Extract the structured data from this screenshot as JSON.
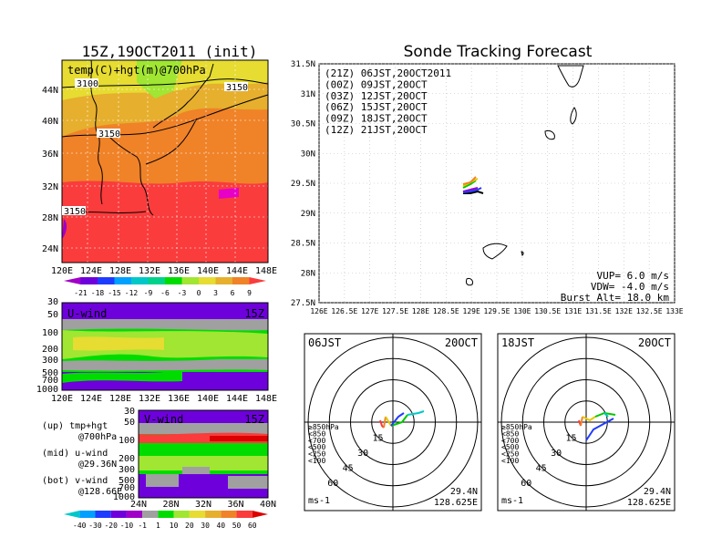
{
  "left": {
    "title": "15Z,19OCT2011 (init)",
    "map_label": "temp(C)+hgt(m)@700hPa",
    "lat_ticks": [
      "44N",
      "40N",
      "36N",
      "32N",
      "28N",
      "24N"
    ],
    "lon_ticks": [
      "120E",
      "124E",
      "128E",
      "132E",
      "136E",
      "140E",
      "144E",
      "148E"
    ],
    "contour_labels": [
      "3100",
      "3150",
      "3150",
      "3150"
    ],
    "colorbar": {
      "labels": [
        "-21",
        "-18",
        "-15",
        "-12",
        "-9",
        "-6",
        "-3",
        "0",
        "3",
        "6",
        "9"
      ],
      "colors": [
        "#a000c8",
        "#6e00dc",
        "#1e3cff",
        "#00a0ff",
        "#00c8c8",
        "#00d28c",
        "#00dc00",
        "#a0e632",
        "#e6dc32",
        "#e6af2d",
        "#f08228",
        "#fa3c3c"
      ]
    }
  },
  "uwind": {
    "label": "U-wind",
    "time": "15Z",
    "y_ticks": [
      "30",
      "50",
      "100",
      "200",
      "300",
      "500",
      "700",
      "1000"
    ],
    "x_ticks": [
      "120E",
      "124E",
      "128E",
      "132E",
      "136E",
      "140E",
      "144E",
      "148E"
    ]
  },
  "vwind": {
    "label": "V-wind",
    "time": "15Z",
    "y_ticks": [
      "30",
      "50",
      "100",
      "200",
      "300",
      "500",
      "700",
      "1000"
    ],
    "x_ticks": [
      "24N",
      "28N",
      "32N",
      "36N",
      "40N"
    ]
  },
  "legend_text": {
    "up": "(up) tmp+hgt",
    "up2": "@700hPa",
    "mid": "(mid) u-wind",
    "mid2": "@29.36N",
    "bot": "(bot) v-wind",
    "bot2": "@128.66E"
  },
  "wind_colorbar": {
    "labels": [
      "-40",
      "-30",
      "-20",
      "-10",
      "-1",
      "1",
      "10",
      "20",
      "30",
      "40",
      "50",
      "60"
    ],
    "colors": [
      "#00c8c8",
      "#00a0ff",
      "#1e3cff",
      "#6e00dc",
      "#a000c8",
      "#a0a0a0",
      "#00dc00",
      "#a0e632",
      "#e6dc32",
      "#e6af2d",
      "#f08228",
      "#fa3c3c",
      "#dc0000"
    ]
  },
  "right": {
    "title": "Sonde Tracking Forecast",
    "launches": [
      {
        "text": "(21Z) 06JST,20OCT2011",
        "color": "#000000"
      },
      {
        "text": "(00Z) 09JST,20OCT",
        "color": "#a000c8"
      },
      {
        "text": "(03Z) 12JST,20OCT",
        "color": "#1e3cff"
      },
      {
        "text": "(06Z) 15JST,20OCT",
        "color": "#00c800"
      },
      {
        "text": "(09Z) 18JST,20OCT",
        "color": "#e6c800"
      },
      {
        "text": "(12Z) 21JST,20OCT",
        "color": "#f08228"
      }
    ],
    "lat_ticks": [
      "31.5N",
      "31N",
      "30.5N",
      "30N",
      "29.5N",
      "29N",
      "28.5N",
      "28N",
      "27.5N"
    ],
    "lon_ticks": [
      "126E",
      "126.5E",
      "127E",
      "127.5E",
      "128E",
      "128.5E",
      "129E",
      "129.5E",
      "130E",
      "130.5E",
      "131E",
      "131.5E",
      "132E",
      "132.5E",
      "133E"
    ],
    "vup": "VUP=  6.0 m/s",
    "vdw": "VDW= -4.0 m/s",
    "burst": "Burst Alt= 18.0 km"
  },
  "hodo1": {
    "time": "06JST",
    "date": "20OCT",
    "rings": [
      "60",
      "45",
      "30",
      "15"
    ],
    "levels": [
      {
        "text": "≥850hPa",
        "color": "#fa3c3c"
      },
      {
        "text": "<850",
        "color": "#f08228"
      },
      {
        "text": "<700",
        "color": "#e6c800"
      },
      {
        "text": "<500",
        "color": "#00c800"
      },
      {
        "text": "<250",
        "color": "#00c8c8"
      },
      {
        "text": "<100",
        "color": "#1e3cff"
      }
    ],
    "units": "ms-1",
    "lat": "29.4N",
    "lon": "128.625E"
  },
  "hodo2": {
    "time": "18JST",
    "date": "20OCT",
    "rings": [
      "60",
      "45",
      "30",
      "15"
    ],
    "levels": [
      {
        "text": "≥850hPa",
        "color": "#fa3c3c"
      },
      {
        "text": "<850",
        "color": "#f08228"
      },
      {
        "text": "<700",
        "color": "#e6c800"
      },
      {
        "text": "<500",
        "color": "#00c800"
      },
      {
        "text": "<250",
        "color": "#00c8c8"
      },
      {
        "text": "<100",
        "color": "#1e3cff"
      }
    ],
    "units": "ms-1",
    "lat": "29.4N",
    "lon": "128.625E"
  }
}
